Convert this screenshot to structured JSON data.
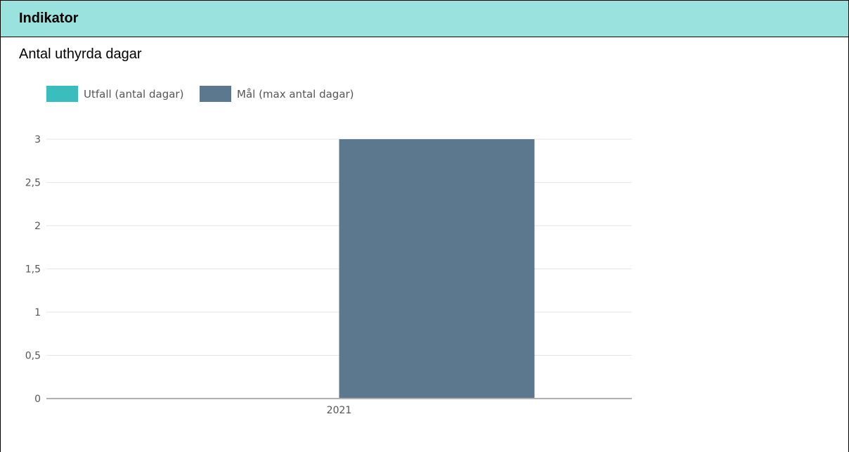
{
  "header": {
    "title": "Indikator"
  },
  "subtitle": "Antal uthyrda dagar",
  "chart_data": {
    "type": "bar",
    "categories": [
      "2021"
    ],
    "series": [
      {
        "name": "Utfall (antal dagar)",
        "values": [
          0
        ],
        "color": "#3cbdbd"
      },
      {
        "name": "Mål (max antal dagar)",
        "values": [
          3
        ],
        "color": "#5c788e"
      }
    ],
    "ylim": [
      0,
      3
    ],
    "yticks": [
      0,
      0.5,
      1,
      1.5,
      2,
      2.5,
      3
    ],
    "ytick_labels": [
      "0",
      "0,5",
      "1",
      "1,5",
      "2",
      "2,5",
      "3"
    ],
    "grid": true,
    "legend_position": "top-left"
  }
}
